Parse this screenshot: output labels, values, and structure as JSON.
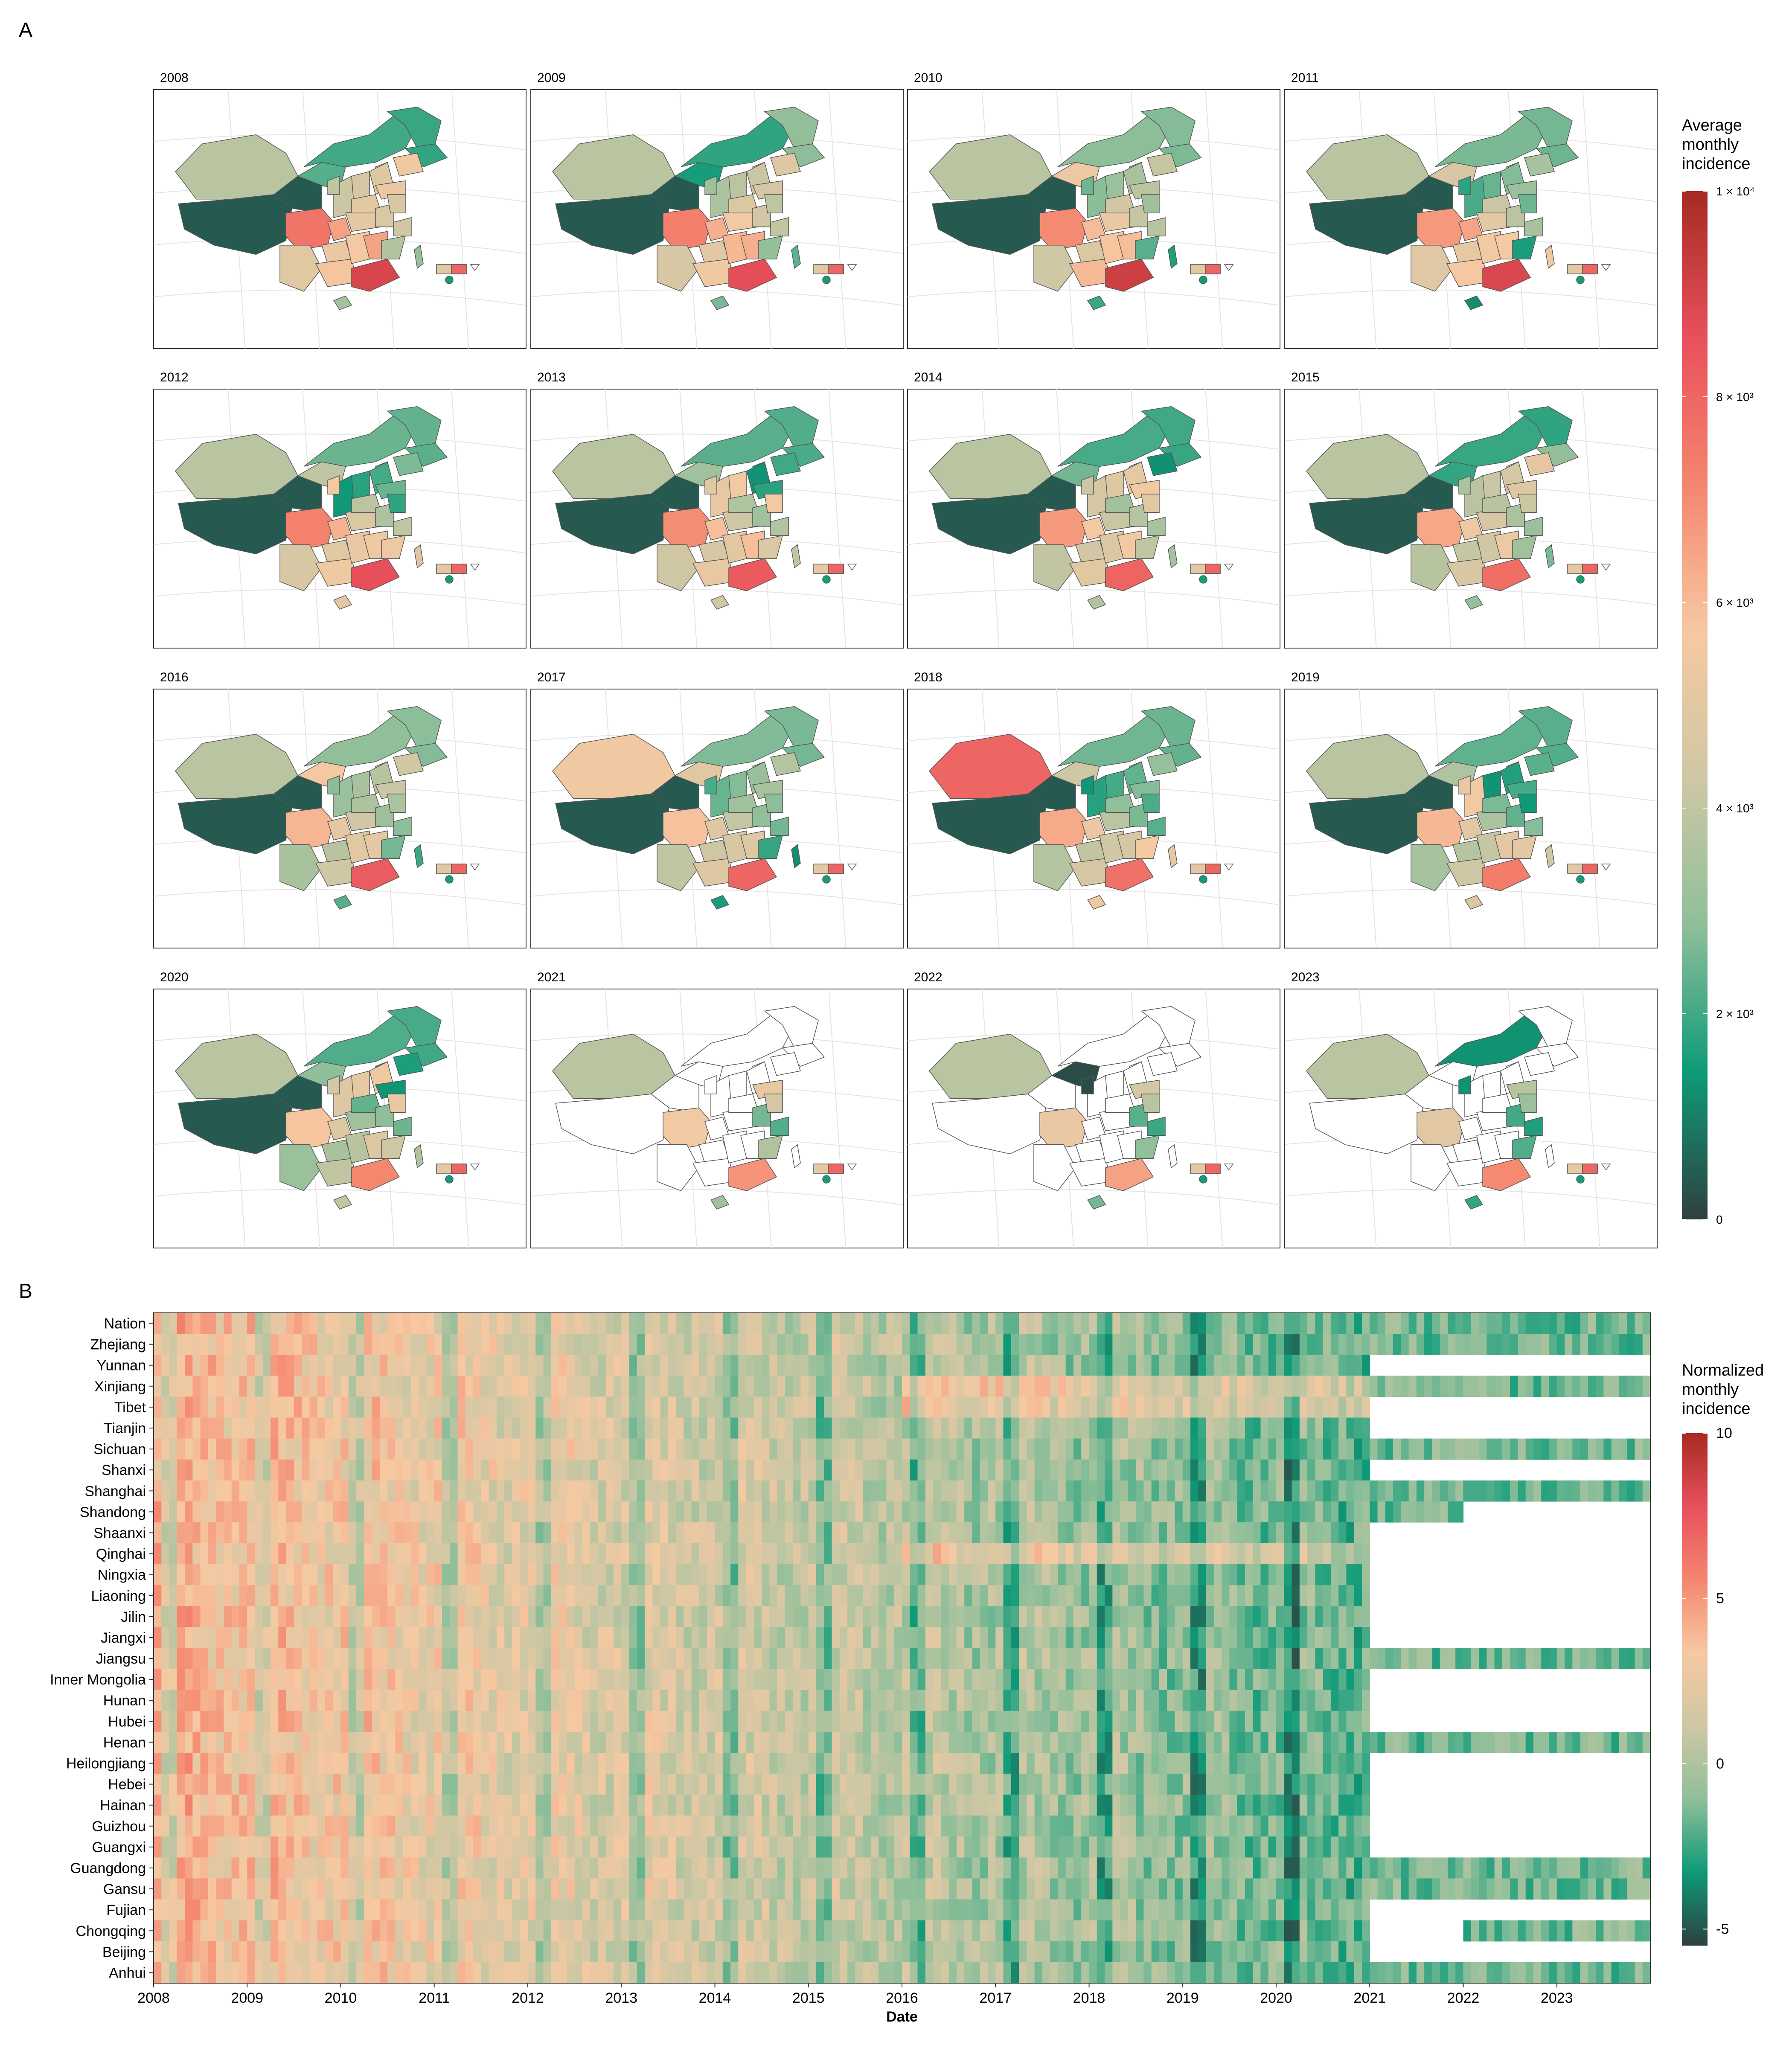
{
  "panels": {
    "a": {
      "letter": "A"
    },
    "b": {
      "letter": "B"
    }
  },
  "maps": {
    "years": [
      "2008",
      "2009",
      "2010",
      "2011",
      "2012",
      "2013",
      "2014",
      "2015",
      "2016",
      "2017",
      "2018",
      "2019",
      "2020",
      "2021",
      "2022",
      "2023"
    ],
    "legend": {
      "title_lines": [
        "Average",
        "monthly",
        "incidence"
      ],
      "ticks": [
        {
          "value": 10000,
          "label": "1 × 10⁴"
        },
        {
          "value": 8000,
          "label": "8 × 10³"
        },
        {
          "value": 6000,
          "label": "6 × 10³"
        },
        {
          "value": 4000,
          "label": "4 × 10³"
        },
        {
          "value": 2000,
          "label": "2 × 10³"
        },
        {
          "value": 0,
          "label": "0"
        }
      ],
      "range": [
        0,
        10000
      ],
      "colors": [
        "#2f4040",
        "#0e9a78",
        "#8fbf9a",
        "#cfc7a4",
        "#f6c9a2",
        "#f5866f",
        "#e8505c",
        "#a62b22"
      ]
    }
  },
  "chart_data": {
    "type": "heatmap",
    "xlabel": "Date",
    "x_tick_labels": [
      "2008",
      "2009",
      "2010",
      "2011",
      "2012",
      "2013",
      "2014",
      "2015",
      "2016",
      "2017",
      "2018",
      "2019",
      "2020",
      "2021",
      "2022",
      "2023"
    ],
    "x_range": [
      "2008-01",
      "2023-12"
    ],
    "rows": [
      "Nation",
      "Zhejiang",
      "Yunnan",
      "Xinjiang",
      "Tibet",
      "Tianjin",
      "Sichuan",
      "Shanxi",
      "Shanghai",
      "Shandong",
      "Shaanxi",
      "Qinghai",
      "Ningxia",
      "Liaoning",
      "Jilin",
      "Jiangxi",
      "Jiangsu",
      "Inner Mongolia",
      "Hunan",
      "Hubei",
      "Henan",
      "Heilongjiang",
      "Hebei",
      "Hainan",
      "Guizhou",
      "Guangxi",
      "Guangdong",
      "Gansu",
      "Fujian",
      "Chongqing",
      "Beijing",
      "Anhui"
    ],
    "legend": {
      "title_lines": [
        "Normalized",
        "monthly",
        "incidence"
      ],
      "ticks": [
        10,
        5,
        0,
        -5
      ],
      "range": [
        -5.5,
        10
      ],
      "colors": [
        "#2f4040",
        "#0e9a78",
        "#8fbf9a",
        "#cfc7a4",
        "#f6c9a2",
        "#f5866f",
        "#e8505c",
        "#a62b22"
      ]
    }
  }
}
